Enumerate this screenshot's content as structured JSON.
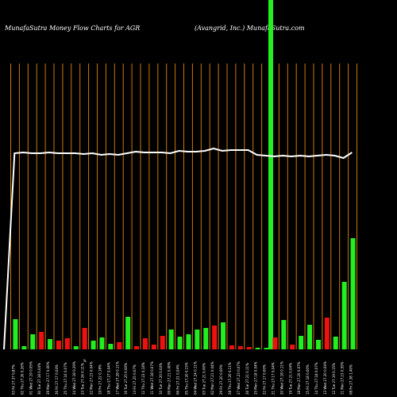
{
  "chart_data": {
    "type": "bar",
    "title_left": "MunafaSutra  Money Flow  Charts for AGR",
    "title_right": "(Avangrid, Inc.) MunafaSutra.com",
    "categories": [
      "03 Fri 27.37 0.87%",
      "02 Thu 27.26 0.26%",
      "01 Wed 27.19 0.05%",
      "30 Tue 27.18 0.04%",
      "29 Mon 27.17 0.00%",
      "26 Fri 27.17 0.04%",
      "25 Thu 27.16 0.07%",
      "24 Wed 27.18 0.29%",
      "23 Tue 27.26 0.11%",
      "22 Mon 27.23 0.04%",
      "19 Fri 27.22 0.18%",
      "18 Thu 27.27 0.04%",
      "17 Wed 27.28 0.11%",
      "16 Tue 27.25 0.00%",
      "13 Fri 27.25 0.07%",
      "12 Thu 27.23 0.18%",
      "11 Wed 27.18 0.07%",
      "10 Tue 27.20 0.04%",
      "09 Mon 27.21 0.00%",
      "06 Fri 27.21 0.04%",
      "05 Thu 27.20 0.15%",
      "04 Wed 27.24 0.11%",
      "03 Tue 27.21 0.00%",
      "02 Mon 27.21 0.04%",
      "29 Fri 27.20 0.00%",
      "28 Thu 27.20 0.11%",
      "27 Wed 27.23 0.07%",
      "26 Tue 27.21 0.11%",
      "25 Mon 27.18 0.04%",
      "22 Fri 27.17 0.00%",
      "21 Thu 27.17 0.04%",
      "20 Wed 27.18 0.11%",
      "19 Tue 27.21 0.04%",
      "18 Mon 27.20 0.07%",
      "15 Fri 27.18 0.00%",
      "14 Thu 27.18 0.07%",
      "13 Wed 27.20 0.04%",
      "12 Tue 27.19 0.15%",
      "11 Mon 27.23 0.55%",
      "08 Fri 27.38 1.40%"
    ],
    "extra_tick_label": "%",
    "series": [
      {
        "name": "",
        "values": [
          {
            "v": 38,
            "c": "#22ee22"
          },
          {
            "v": 4,
            "c": "#22ee22"
          },
          {
            "v": 19,
            "c": "#22ee22"
          },
          {
            "v": 22,
            "c": "#ee1111"
          },
          {
            "v": 13,
            "c": "#22ee22"
          },
          {
            "v": 11,
            "c": "#ee1111"
          },
          {
            "v": 14,
            "c": "#ee1111"
          },
          {
            "v": 4,
            "c": "#22ee22"
          },
          {
            "v": 27,
            "c": "#ee1111"
          },
          {
            "v": 11,
            "c": "#22ee22"
          },
          {
            "v": 15,
            "c": "#22ee22"
          },
          {
            "v": 7,
            "c": "#22ee22"
          },
          {
            "v": 9,
            "c": "#ee1111"
          },
          {
            "v": 41,
            "c": "#22ee22"
          },
          {
            "v": 4,
            "c": "#ee1111"
          },
          {
            "v": 14,
            "c": "#ee1111"
          },
          {
            "v": 6,
            "c": "#ee1111"
          },
          {
            "v": 17,
            "c": "#ee1111"
          },
          {
            "v": 25,
            "c": "#22ee22"
          },
          {
            "v": 16,
            "c": "#22ee22"
          },
          {
            "v": 19,
            "c": "#22ee22"
          },
          {
            "v": 25,
            "c": "#22ee22"
          },
          {
            "v": 27,
            "c": "#22ee22"
          },
          {
            "v": 30,
            "c": "#ee1111"
          },
          {
            "v": 34,
            "c": "#22ee22"
          },
          {
            "v": 5,
            "c": "#ee1111"
          },
          {
            "v": 4,
            "c": "#ee1111"
          },
          {
            "v": 3,
            "c": "#ee1111"
          },
          {
            "v": 2,
            "c": "#22ee22"
          },
          {
            "v": 2,
            "c": "#22ee22"
          },
          {
            "v": 15,
            "c": "#ee1111"
          },
          {
            "v": 37,
            "c": "#22ee22"
          },
          {
            "v": 6,
            "c": "#ee1111"
          },
          {
            "v": 17,
            "c": "#22ee22"
          },
          {
            "v": 31,
            "c": "#22ee22"
          },
          {
            "v": 12,
            "c": "#22ee22"
          },
          {
            "v": 40,
            "c": "#ee1111"
          },
          {
            "v": 16,
            "c": "#22ee22"
          },
          {
            "v": 85,
            "c": "#22ee22"
          },
          {
            "v": 140,
            "c": "#22ee22"
          }
        ]
      }
    ],
    "price_line": [
      0,
      247,
      248,
      247,
      247,
      248,
      247,
      247,
      247,
      246,
      247,
      245,
      246,
      245,
      247,
      249,
      248,
      248,
      248,
      247,
      250,
      249,
      249,
      250,
      253,
      250,
      251,
      251,
      251,
      245,
      244,
      243,
      244,
      243,
      244,
      243,
      244,
      245,
      244,
      241,
      248
    ],
    "price_line_units": "relative level (0 = bottom, higher = up)",
    "highlight_index": 30,
    "colors": {
      "background": "#000000",
      "grid": "#cc7a00",
      "price_line": "#ffffff",
      "highlight": "#22ee22",
      "up": "#22ee22",
      "down": "#ee1111"
    },
    "grid": true
  }
}
